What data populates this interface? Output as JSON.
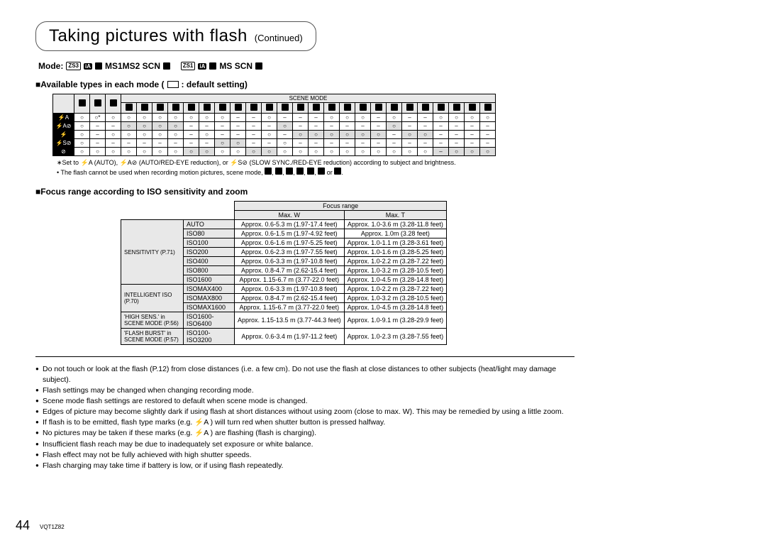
{
  "title": {
    "main": "Taking pictures with flash",
    "continued": "(Continued)"
  },
  "modeLine": {
    "prefix": "Mode:",
    "text1": "MS1MS2 SCN",
    "text2": "MS SCN",
    "badges": [
      "ZS3",
      "ZS1"
    ]
  },
  "sect1": {
    "head": "Available types in each mode (",
    "head2": ": default setting)"
  },
  "sceneModeLabel": "SCENE MODE",
  "t1cols": 27,
  "t1rows": [
    {
      "lbl": "⚡A",
      "cells": [
        "○",
        "○*",
        "○",
        "○",
        "○",
        "○",
        "○",
        "○",
        "○",
        "○",
        "–",
        "–",
        "○",
        "–",
        "–",
        "–",
        "○",
        "○",
        "○",
        "–",
        "○",
        "–",
        "–",
        "○",
        "○",
        "○",
        "○"
      ],
      "shade": []
    },
    {
      "lbl": "⚡A⊘",
      "cells": [
        "○",
        "–",
        "–",
        "○",
        "○",
        "○",
        "○",
        "–",
        "–",
        "–",
        "–",
        "–",
        "–",
        "○",
        "–",
        "–",
        "–",
        "–",
        "–",
        "–",
        "○",
        "–",
        "–",
        "–",
        "–",
        "–",
        "–"
      ],
      "shade": [
        3,
        4,
        5,
        6,
        13,
        20
      ]
    },
    {
      "lbl": "⚡",
      "cells": [
        "○",
        "–",
        "○",
        "○",
        "○",
        "○",
        "○",
        "–",
        "○",
        "–",
        "–",
        "–",
        "○",
        "–",
        "○",
        "○",
        "○",
        "○",
        "○",
        "○",
        "–",
        "○",
        "○",
        "–",
        "–",
        "–",
        "–"
      ],
      "shade": [
        14,
        15,
        16,
        17,
        18,
        19,
        21,
        22
      ]
    },
    {
      "lbl": "⚡S⊘",
      "cells": [
        "○",
        "–",
        "–",
        "–",
        "–",
        "–",
        "–",
        "–",
        "–",
        "○",
        "○",
        "–",
        "–",
        "○",
        "–",
        "–",
        "–",
        "–",
        "–",
        "–",
        "–",
        "–",
        "–",
        "–",
        "–",
        "–",
        "–"
      ],
      "shade": [
        9,
        10
      ]
    },
    {
      "lbl": "⊘",
      "cells": [
        "○",
        "○",
        "○",
        "○",
        "○",
        "○",
        "○",
        "○",
        "○",
        "○",
        "○",
        "○",
        "○",
        "○",
        "○",
        "○",
        "○",
        "○",
        "○",
        "○",
        "○",
        "○",
        "○",
        "–",
        "○",
        "○",
        "○"
      ],
      "shade": [
        7,
        8,
        11,
        12,
        23,
        24,
        25,
        26
      ]
    }
  ],
  "note1": "∗Set to ⚡A (AUTO), ⚡A⊘ (AUTO/RED-EYE reduction), or ⚡S⊘ (SLOW SYNC./RED-EYE reduction) according to subject and brightness.",
  "note2a": "• The flash cannot be used when recording motion pictures, scene mode, ",
  "note2b": " or ",
  "sect2": "Focus range according to ISO sensitivity and zoom",
  "t2": {
    "head": "Focus range",
    "cols": [
      "Max. W",
      "Max. T"
    ],
    "groups": [
      {
        "side": "SENSITIVITY (P.71)",
        "rows": [
          [
            "AUTO",
            "Approx. 0.6-5.3 m (1.97-17.4 feet)",
            "Approx. 1.0-3.6 m (3.28-11.8 feet)"
          ],
          [
            "ISO80",
            "Approx. 0.6-1.5 m (1.97-4.92 feet)",
            "Approx. 1.0m (3.28 feet)"
          ],
          [
            "ISO100",
            "Approx. 0.6-1.6 m (1.97-5.25 feet)",
            "Approx. 1.0-1.1 m (3.28-3.61 feet)"
          ],
          [
            "ISO200",
            "Approx. 0.6-2.3 m (1.97-7.55 feet)",
            "Approx. 1.0-1.6 m (3.28-5.25 feet)"
          ],
          [
            "ISO400",
            "Approx. 0.6-3.3 m (1.97-10.8 feet)",
            "Approx. 1.0-2.2 m (3.28-7.22 feet)"
          ],
          [
            "ISO800",
            "Approx. 0.8-4.7 m (2.62-15.4 feet)",
            "Approx. 1.0-3.2 m (3.28-10.5 feet)"
          ],
          [
            "ISO1600",
            "Approx. 1.15-6.7 m (3.77-22.0 feet)",
            "Approx. 1.0-4.5 m (3.28-14.8 feet)"
          ]
        ]
      },
      {
        "side": "INTELLIGENT ISO (P.70)",
        "rows": [
          [
            "ISOMAX400",
            "Approx. 0.6-3.3 m (1.97-10.8 feet)",
            "Approx. 1.0-2.2 m (3.28-7.22 feet)"
          ],
          [
            "ISOMAX800",
            "Approx. 0.8-4.7 m (2.62-15.4 feet)",
            "Approx. 1.0-3.2 m (3.28-10.5 feet)"
          ],
          [
            "ISOMAX1600",
            "Approx. 1.15-6.7 m (3.77-22.0 feet)",
            "Approx. 1.0-4.5 m (3.28-14.8 feet)"
          ]
        ]
      },
      {
        "side": "'HIGH SENS.' in SCENE MODE (P.56)",
        "rows": [
          [
            "ISO1600-ISO6400",
            "Approx. 1.15-13.5 m (3.77-44.3 feet)",
            "Approx. 1.0-9.1 m (3.28-29.9 feet)"
          ]
        ]
      },
      {
        "side": "'FLASH BURST' in SCENE MODE (P.57)",
        "rows": [
          [
            "ISO100-ISO3200",
            "Approx. 0.6-3.4 m (1.97-11.2 feet)",
            "Approx. 1.0-2.3 m (3.28-7.55 feet)"
          ]
        ]
      }
    ]
  },
  "bullets": [
    "Do not touch or look at the flash (P.12) from close distances (i.e. a few cm). Do not use the flash at close distances to other subjects (heat/light may damage subject).",
    "Flash settings may be changed when changing recording mode.",
    "Scene mode flash settings are restored to default when scene mode is changed.",
    "Edges of picture may become slightly dark if using flash at short distances without using zoom (close to max. W). This may be remedied by using a little zoom.",
    "If flash is to be emitted, flash type marks (e.g. ⚡A ) will turn red when shutter button is pressed halfway.",
    "No pictures may be taken if these marks (e.g. ⚡A ) are flashing (flash is charging).",
    "Insufficient flash reach may be due to inadequately set exposure or white balance.",
    "Flash effect may not be fully achieved with high shutter speeds.",
    "Flash charging may take time if battery is low, or if using flash repeatedly."
  ],
  "page": "44",
  "docid": "VQT1Z82"
}
